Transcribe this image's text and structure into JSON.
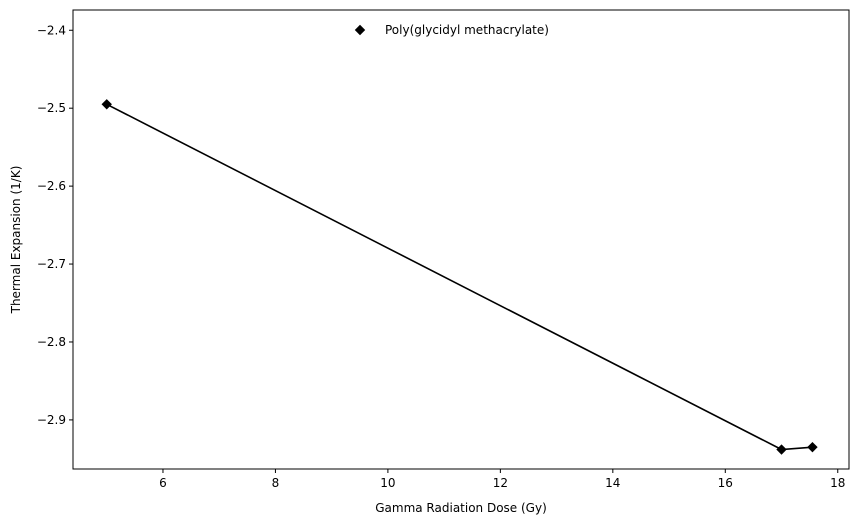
{
  "chart_data": {
    "type": "line",
    "title": "",
    "xlabel": "Gamma Radiation Dose (Gy)",
    "ylabel": "Thermal Expansion (1/K)",
    "xlim": [
      4.4,
      18.2
    ],
    "ylim": [
      -2.963,
      -2.374
    ],
    "xticks": [
      6,
      8,
      10,
      12,
      14,
      16,
      18
    ],
    "yticks": [
      -2.9,
      -2.8,
      -2.7,
      -2.6,
      -2.5,
      -2.4
    ],
    "xtick_labels": [
      "6",
      "8",
      "10",
      "12",
      "14",
      "16",
      "18"
    ],
    "ytick_labels": [
      "−2.9",
      "−2.8",
      "−2.7",
      "−2.6",
      "−2.5",
      "−2.4"
    ],
    "grid": false,
    "legend_position": "upper-center",
    "series": [
      {
        "name": "Poly(glycidyl methacrylate)",
        "color": "#000000",
        "marker": "diamond",
        "x": [
          5.0,
          17.0,
          17.55
        ],
        "y": [
          -2.495,
          -2.938,
          -2.935
        ]
      }
    ]
  }
}
